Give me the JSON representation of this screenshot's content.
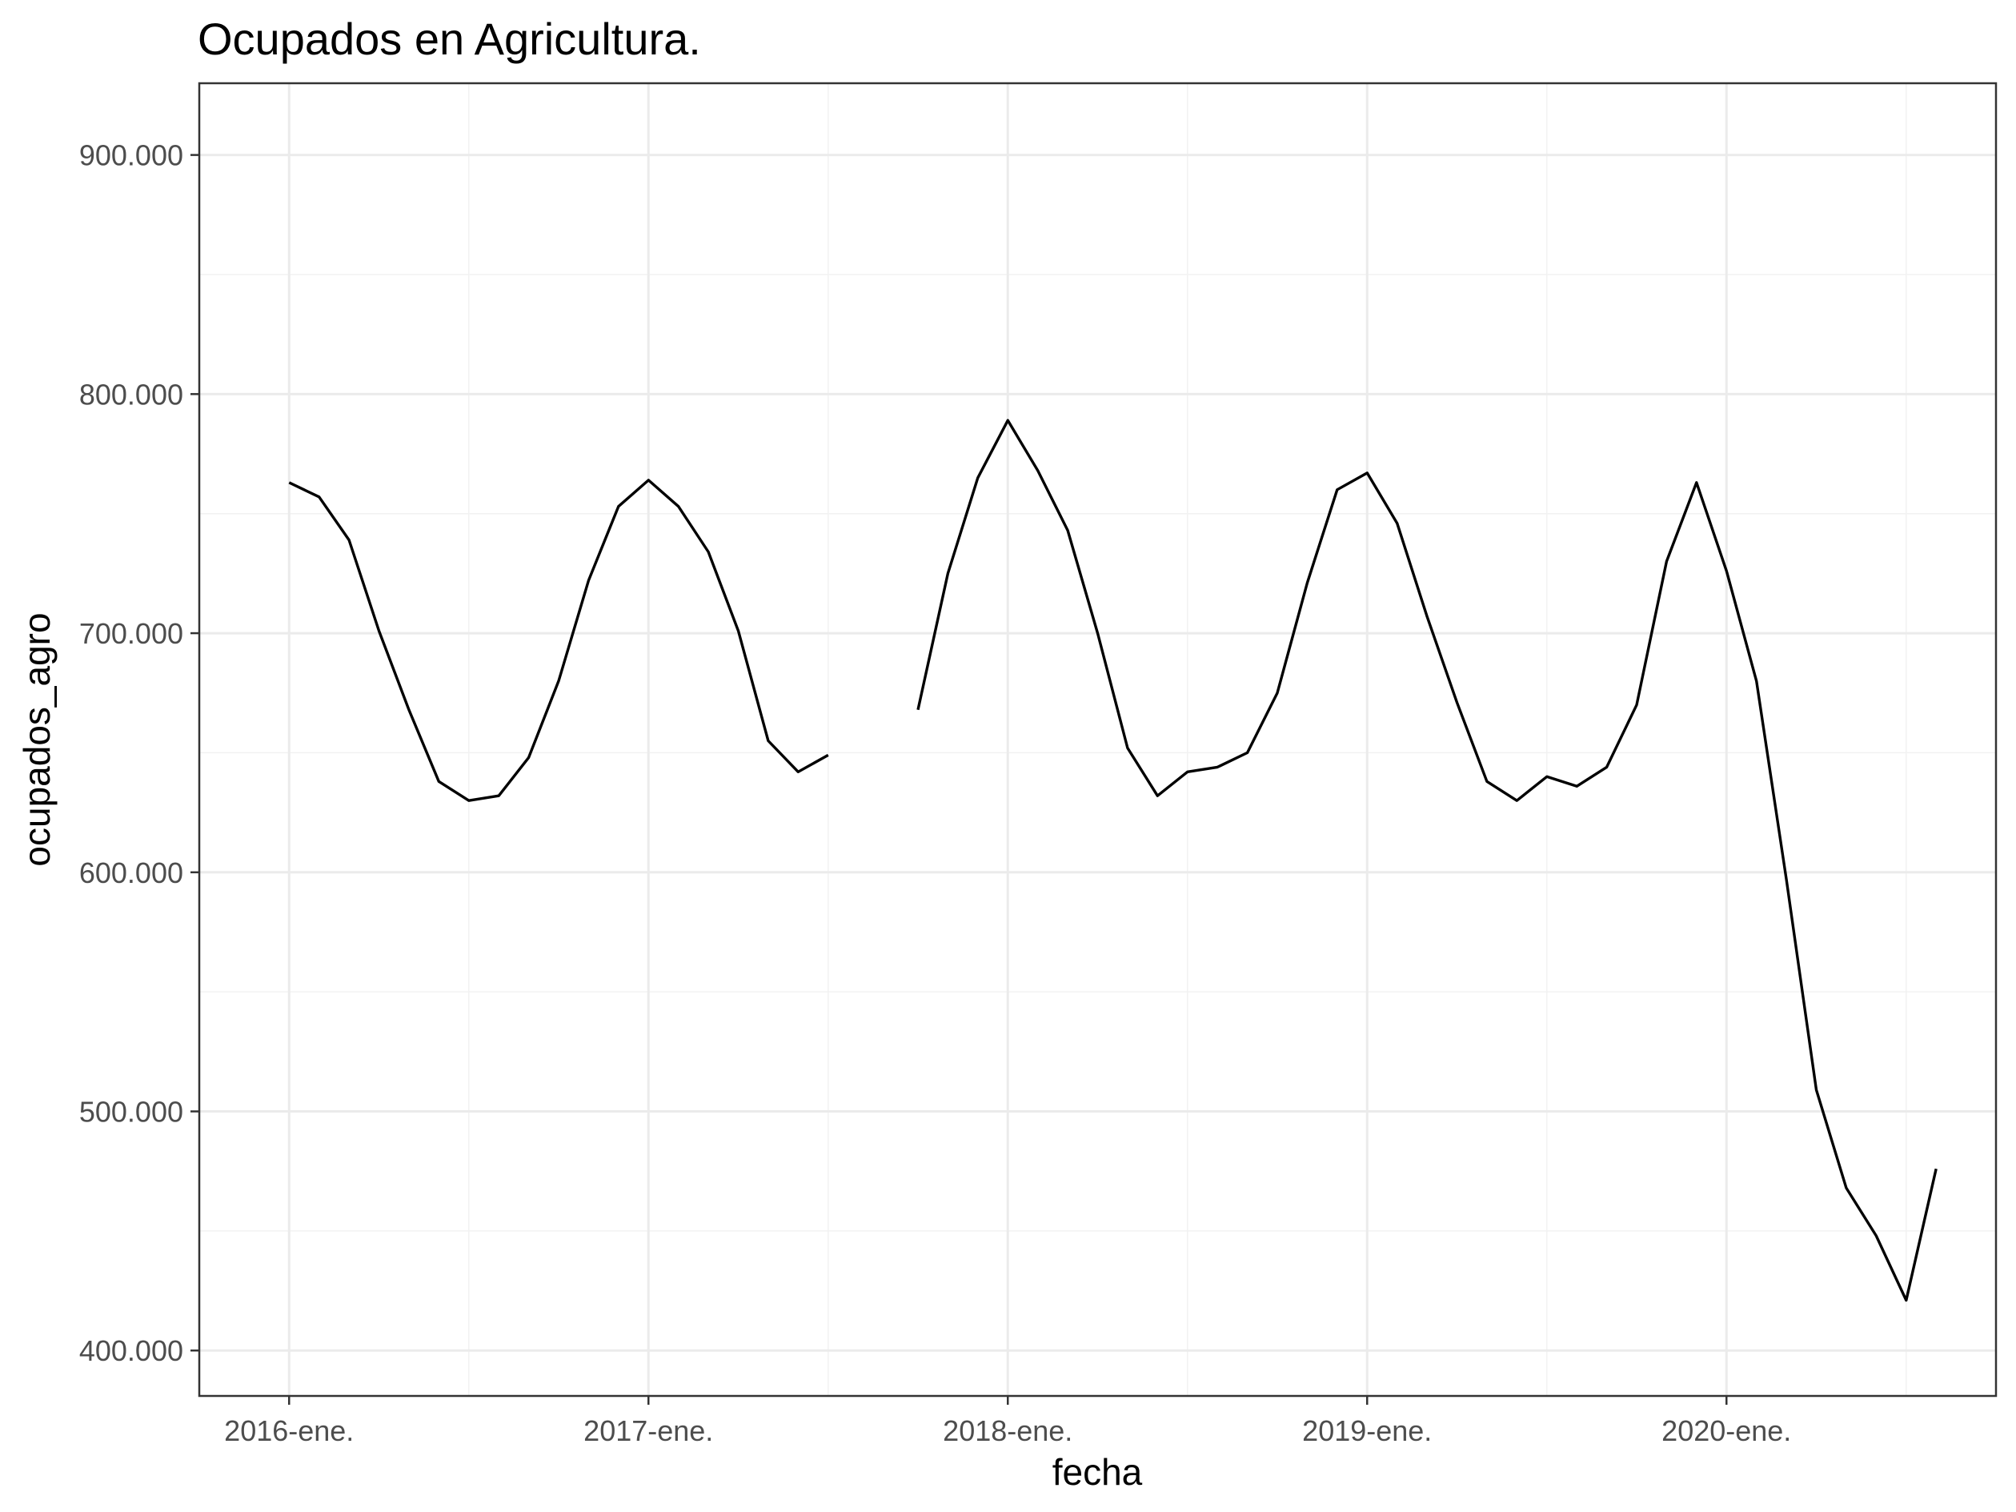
{
  "chart_data": {
    "type": "line",
    "title": "Ocupados en Agricultura.",
    "xlabel": "fecha",
    "ylabel": "ocupados_agro",
    "x_tick_labels": [
      "2016-ene.",
      "2017-ene.",
      "2018-ene.",
      "2019-ene.",
      "2020-ene."
    ],
    "y_tick_labels": [
      "400.000",
      "500.000",
      "600.000",
      "700.000",
      "800.000",
      "900.000"
    ],
    "y_ticks": [
      400000,
      500000,
      600000,
      700000,
      800000,
      900000
    ],
    "ylim": [
      381000,
      930000
    ],
    "xlim": [
      "2015-10",
      "2020-10"
    ],
    "grid": true,
    "series": [
      {
        "x": [
          "2016-01",
          "2016-02",
          "2016-03",
          "2016-04",
          "2016-05",
          "2016-06",
          "2016-07",
          "2016-08",
          "2016-09",
          "2016-10",
          "2016-11",
          "2016-12",
          "2017-01",
          "2017-02",
          "2017-03",
          "2017-04",
          "2017-05",
          "2017-06",
          "2017-07",
          "2017-08",
          "2017-09",
          "2017-10",
          "2017-11",
          "2017-12",
          "2018-01",
          "2018-02",
          "2018-03",
          "2018-04",
          "2018-05",
          "2018-06",
          "2018-07",
          "2018-08",
          "2018-09",
          "2018-10",
          "2018-11",
          "2018-12",
          "2019-01",
          "2019-02",
          "2019-03",
          "2019-04",
          "2019-05",
          "2019-06",
          "2019-07",
          "2019-08",
          "2019-09",
          "2019-10",
          "2019-11",
          "2019-12",
          "2020-01",
          "2020-02",
          "2020-03",
          "2020-04",
          "2020-05",
          "2020-06",
          "2020-07",
          "2020-08"
        ],
        "y": [
          763000,
          757000,
          739000,
          701000,
          668000,
          638000,
          630000,
          632000,
          648000,
          680000,
          722000,
          753000,
          764000,
          753000,
          734000,
          701000,
          655000,
          642000,
          649000,
          null,
          null,
          668000,
          725000,
          765000,
          789000,
          768000,
          743000,
          700000,
          652000,
          632000,
          642000,
          644000,
          650000,
          675000,
          721000,
          760000,
          767000,
          746000,
          707000,
          671000,
          638000,
          630000,
          640000,
          636000,
          644000,
          670000,
          730000,
          763000,
          726000,
          680000,
          597000,
          509000,
          468000,
          448000,
          421000,
          476000
        ]
      }
    ]
  }
}
